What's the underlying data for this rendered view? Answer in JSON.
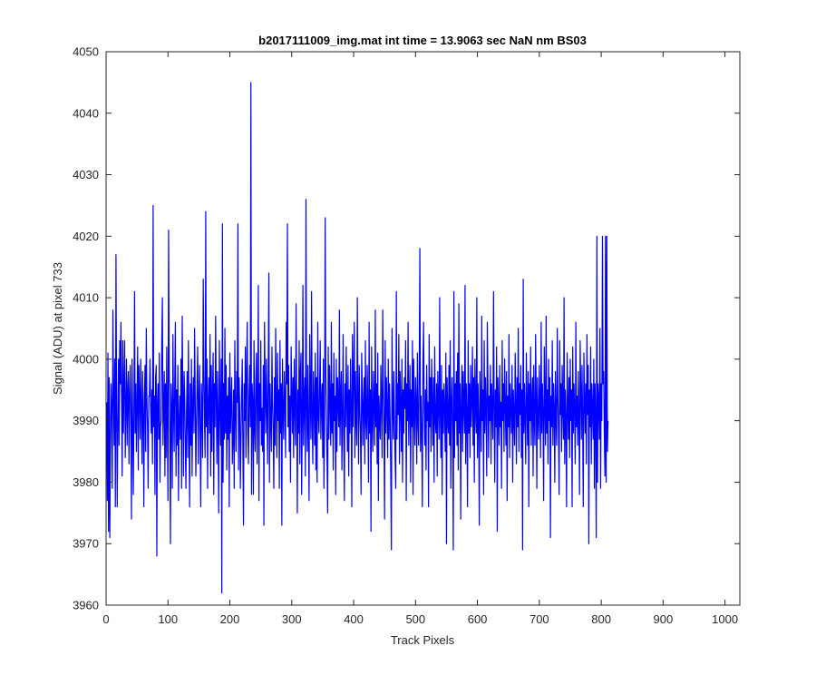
{
  "chart_data": {
    "type": "line",
    "title": "b2017111009_img.mat int time = 13.9063 sec  NaN nm BS03",
    "xlabel": "Track Pixels",
    "ylabel": "Signal (ADU) at pixel 733",
    "xlim": [
      0,
      1024
    ],
    "ylim": [
      3960,
      4050
    ],
    "xticks": [
      0,
      100,
      200,
      300,
      400,
      500,
      600,
      700,
      800,
      900,
      1000
    ],
    "yticks": [
      3960,
      3970,
      3980,
      3990,
      4000,
      4010,
      4020,
      4030,
      4040,
      4050
    ],
    "grid": false,
    "legend": "none",
    "series_color": "#0000ff",
    "series": [
      {
        "x_start": 1,
        "x_step": 1,
        "values": [
          3993,
          3977,
          4001,
          3972,
          3997,
          3971,
          3987,
          3996,
          3992,
          3979,
          4008,
          3995,
          3986,
          4000,
          3976,
          4017,
          3992,
          3976,
          3990,
          4000,
          3986,
          4003,
          3996,
          4006,
          3993,
          3981,
          4003,
          3988,
          3996,
          4003,
          3984,
          3992,
          4000,
          3986,
          3995,
          3998,
          3983,
          3994,
          3999,
          3991,
          3974,
          4000,
          3990,
          3978,
          3992,
          4011,
          3988,
          3996,
          3985,
          3993,
          4002,
          3982,
          3999,
          3994,
          3987,
          4000,
          3992,
          3983,
          3998,
          3991,
          3976,
          3994,
          3999,
          3985,
          4005,
          3993,
          3989,
          3979,
          3994,
          3994,
          4000,
          3992,
          3988,
          3995,
          3983,
          4025,
          3989,
          3994,
          3978,
          3997,
          3999,
          3968,
          3993,
          3996,
          3987,
          4001,
          3980,
          3989,
          3990,
          4003,
          4010,
          3986,
          3992,
          3998,
          3981,
          3996,
          3984,
          4002,
          3990,
          3977,
          4021,
          3999,
          3988,
          3970,
          3996,
          3992,
          3979,
          4004,
          3992,
          3985,
          3997,
          4006,
          3981,
          3995,
          3986,
          3999,
          3977,
          3990,
          3994,
          3987,
          4000,
          3979,
          4007,
          3995,
          3981,
          3998,
          3994,
          3986,
          3979,
          3992,
          3998,
          3984,
          4003,
          3990,
          3976,
          3996,
          3986,
          4000,
          3981,
          3993,
          3997,
          3988,
          4005,
          3994,
          3981,
          3989,
          3996,
          4002,
          3983,
          3993,
          3999,
          3987,
          3976,
          3996,
          3992,
          3984,
          4013,
          3998,
          3990,
          3984,
          4024,
          3989,
          4000,
          3979,
          3993,
          3997,
          3988,
          4004,
          3981,
          3999,
          3985,
          3994,
          4001,
          3978,
          3996,
          3989,
          4007,
          3994,
          3983,
          3998,
          3990,
          3975,
          4003,
          3993,
          3986,
          4000,
          3962,
          4022,
          3980,
          3996,
          3987,
          4005,
          3988,
          3999,
          3982,
          3994,
          3987,
          3997,
          3976,
          4001,
          3988,
          3993,
          3997,
          3983,
          3987,
          3995,
          3979,
          4003,
          3991,
          3985,
          3998,
          3993,
          4022,
          3982,
          3997,
          3992,
          3979,
          3987,
          3994,
          4000,
          3986,
          3973,
          3996,
          3990,
          4002,
          3984,
          3997,
          4006,
          3988,
          3983,
          3994,
          3999,
          3989,
          4045,
          3978,
          3996,
          3993,
          3978,
          4003,
          3989,
          3985,
          3997,
          4001,
          3983,
          3994,
          4012,
          3977,
          3996,
          3990,
          4003,
          3986,
          3992,
          3985,
          3999,
          3973,
          4006,
          3995,
          3988,
          4000,
          3992,
          3983,
          3998,
          4014,
          3980,
          3996,
          3990,
          3985,
          4002,
          3993,
          3988,
          3979,
          3997,
          3986,
          4005,
          3992,
          3984,
          4001,
          3990,
          3995,
          3979,
          4003,
          3988,
          3996,
          3973,
          4000,
          3991,
          3987,
          3998,
          3993,
          3984,
          4006,
          3996,
          4022,
          3989,
          3999,
          3985,
          3994,
          3980,
          4002,
          3995,
          3988,
          3997,
          3984,
          4000,
          3992,
          3986,
          4009,
          3993,
          3975,
          3995,
          3988,
          4003,
          3983,
          3998,
          4001,
          3978,
          3990,
          4012,
          3986,
          3993,
          3997,
          3981,
          4026,
          3992,
          3985,
          3999,
          3989,
          3977,
          4004,
          3994,
          3987,
          4011,
          3990,
          3983,
          3998,
          3993,
          3986,
          4001,
          3982,
          3997,
          3980,
          4006,
          3991,
          3988,
          3995,
          4003,
          3987,
          3993,
          3996,
          3984,
          4000,
          3979,
          3989,
          4023,
          3998,
          3991,
          3984,
          3975,
          4002,
          3987,
          3999,
          3993,
          3986,
          4006,
          3988,
          3996,
          3982,
          4001,
          3990,
          3994,
          3978,
          4000,
          3985,
          3997,
          3993,
          3989,
          4008,
          3986,
          3994,
          3998,
          3982,
          3991,
          4004,
          3987,
          3977,
          3996,
          3989,
          4002,
          3993,
          3985,
          3999,
          3981,
          3995,
          3988,
          4000,
          3992,
          3976,
          4004,
          3989,
          3997,
          4006,
          3984,
          3998,
          3990,
          3986,
          4010,
          3994,
          3983,
          3999,
          3992,
          3988,
          3978,
          4001,
          3995,
          3986,
          3993,
          3997,
          3983,
          4003,
          3990,
          3987,
          3999,
          3992,
          3980,
          4006,
          3988,
          3995,
          3972,
          4002,
          3991,
          3985,
          3998,
          3993,
          3986,
          4008,
          3989,
          3996,
          3983,
          4001,
          3977,
          3994,
          3990,
          3987,
          3999,
          3993,
          3984,
          4008,
          3995,
          3989,
          3974,
          4003,
          3988,
          3997,
          3992,
          3984,
          4000,
          3987,
          3996,
          3990,
          3981,
          3969,
          4005,
          3993,
          3987,
          3998,
          3990,
          3984,
          3979,
          4011,
          3987,
          3996,
          3991,
          4004,
          3983,
          3998,
          3993,
          3985,
          4000,
          3980,
          3995,
          3988,
          3997,
          3992,
          4003,
          3977,
          3996,
          3990,
          4006,
          3986,
          3993,
          3999,
          3980,
          3995,
          3989,
          4003,
          3978,
          4000,
          3992,
          3986,
          3997,
          3993,
          3983,
          4001,
          3990,
          3986,
          3998,
          4018,
          3985,
          3994,
          3988,
          3976,
          3999,
          4006,
          3992,
          3986,
          3995,
          3982,
          3999,
          3990,
          3993,
          3976,
          4004,
          3989,
          3997,
          3985,
          4000,
          3993,
          3986,
          3997,
          3980,
          4002,
          3990,
          3988,
          3996,
          3981,
          3998,
          3993,
          3987,
          4010,
          3991,
          3984,
          3999,
          3978,
          3995,
          3988,
          3996,
          3992,
          3985,
          4001,
          3970,
          3997,
          3991,
          3988,
          3999,
          3986,
          4003,
          3979,
          3993,
          3997,
          3988,
          3969,
          4011,
          3984,
          3996,
          3990,
          3998,
          3986,
          4001,
          3982,
          4009,
          3988,
          3996,
          3974,
          3993,
          3999,
          3985,
          3998,
          3992,
          3988,
          4012,
          3983,
          3996,
          3991,
          3976,
          4003,
          3988,
          3996,
          3984,
          3999,
          3989,
          3993,
          4002,
          3986,
          3997,
          3980,
          4000,
          3992,
          3988,
          4010,
          3984,
          3996,
          3990,
          3973,
          3998,
          3993,
          3985,
          4007,
          3990,
          3995,
          3978,
          4003,
          3988,
          3997,
          3992,
          3981,
          4006,
          3996,
          3984,
          3994,
          3990,
          3999,
          3983,
          3996,
          3992,
          3987,
          4011,
          3993,
          3980,
          3995,
          3989,
          4002,
          3972,
          3997,
          3992,
          3986,
          3999,
          3989,
          3993,
          3979,
          4003,
          3990,
          3996,
          3985,
          4000,
          3993,
          3986,
          3998,
          3977,
          3994,
          3989,
          4004,
          3984,
          3996,
          3992,
          3988,
          3999,
          3980,
          3995,
          3991,
          3986,
          4001,
          3993,
          3983,
          3997,
          3989,
          4005,
          3985,
          3996,
          3991,
          3999,
          3984,
          3995,
          3969,
          4013,
          3988,
          3996,
          3990,
          3983,
          4001,
          3993,
          3986,
          3998,
          3976,
          3996,
          3990,
          4002,
          3986,
          3993,
          3997,
          3981,
          3999,
          3990,
          3986,
          4004,
          3994,
          3979,
          3997,
          3990,
          3987,
          3999,
          3993,
          3984,
          4006,
          3988,
          3996,
          3991,
          3977,
          4002,
          3993,
          3986,
          4007,
          3988,
          3995,
          3983,
          4000,
          3990,
          3997,
          3971,
          3994,
          3989,
          4003,
          3986,
          3996,
          3992,
          3980,
          3998,
          3990,
          3986,
          4005,
          3994,
          3988,
          3978,
          4003,
          3991,
          3996,
          3985,
          3999,
          3992,
          3987,
          4010,
          3983,
          3995,
          3990,
          3976,
          4001,
          3993,
          3987,
          3997,
          3984,
          4000,
          3990,
          3995,
          3976,
          4002,
          3988,
          3996,
          3992,
          3983,
          4006,
          3989,
          3994,
          3986,
          3998,
          3991,
          3978,
          4003,
          3995,
          3987,
          3999,
          3990,
          3976,
          4001,
          3994,
          3988,
          3996,
          3983,
          4004,
          3991,
          3999,
          3970,
          3995,
          3989,
          4002,
          3983,
          3996,
          3992,
          3987,
          4000,
          3979,
          3996,
          3990,
          3971,
          4020,
          3980,
          3996,
          3993,
          3987,
          4005,
          3979,
          3996,
          3990,
          4020,
          3996,
          3998,
          3988,
          3981,
          4020,
          3980,
          4020,
          3985,
          3990
        ]
      }
    ]
  }
}
